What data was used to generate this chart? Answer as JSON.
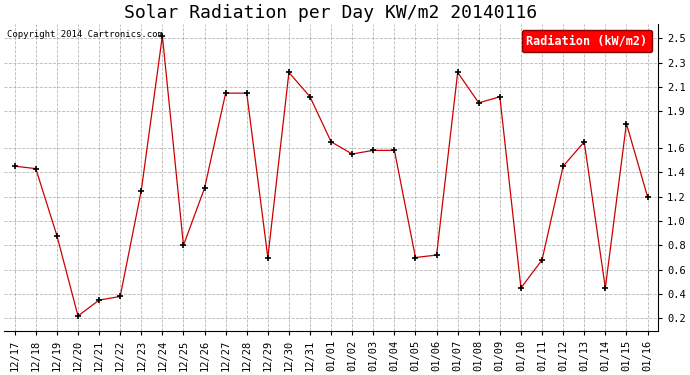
{
  "title": "Solar Radiation per Day KW/m2 20140116",
  "copyright": "Copyright 2014 Cartronics.com",
  "legend_label": "Radiation (kW/m2)",
  "dates": [
    "12/17",
    "12/18",
    "12/19",
    "12/20",
    "12/21",
    "12/22",
    "12/23",
    "12/24",
    "12/25",
    "12/26",
    "12/27",
    "12/28",
    "12/29",
    "12/30",
    "12/31",
    "01/01",
    "01/02",
    "01/03",
    "01/04",
    "01/05",
    "01/06",
    "01/07",
    "01/08",
    "01/09",
    "01/10",
    "01/11",
    "01/12",
    "01/13",
    "01/14",
    "01/15",
    "01/16"
  ],
  "values": [
    1.45,
    1.43,
    0.88,
    0.22,
    0.35,
    0.38,
    1.25,
    2.52,
    0.8,
    1.27,
    2.05,
    2.05,
    0.7,
    2.22,
    2.02,
    1.65,
    1.55,
    1.58,
    1.58,
    0.7,
    0.72,
    2.22,
    1.97,
    2.02,
    0.45,
    0.68,
    1.45,
    1.65,
    0.45,
    1.8,
    1.2
  ],
  "line_color": "#cc0000",
  "marker": "+",
  "marker_color": "black",
  "ylim": [
    0.1,
    2.62
  ],
  "yticks": [
    0.2,
    0.4,
    0.6,
    0.8,
    1.0,
    1.2,
    1.4,
    1.6,
    1.9,
    2.1,
    2.3,
    2.5
  ],
  "background_color": "#ffffff",
  "grid_color": "#999999",
  "title_fontsize": 13,
  "tick_fontsize": 7.5,
  "legend_fontsize": 8.5,
  "fig_width": 6.9,
  "fig_height": 3.75,
  "dpi": 100
}
